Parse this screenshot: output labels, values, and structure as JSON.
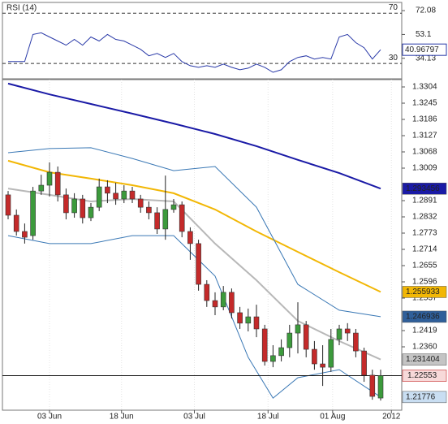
{
  "chart_data": [
    {
      "type": "line",
      "title": "RSI (14)",
      "color": "#2a3aa8",
      "values": [
        31.5,
        31.5,
        31.5,
        53.1,
        54.4,
        51.1,
        47.9,
        44.6,
        49.2,
        44.6,
        51.1,
        47.9,
        53.1,
        49.2,
        47.9,
        44.6,
        41.3,
        36.1,
        38.0,
        34.8,
        38.0,
        31.5,
        28.2,
        26.9,
        28.2,
        26.9,
        29.5,
        26.9,
        25.0,
        26.3,
        29.5,
        26.9,
        23.0,
        25.0,
        31.5,
        34.8,
        36.1,
        33.5,
        34.8,
        33.5,
        51.1,
        53.1,
        46.6,
        42.6,
        33.5,
        40.96797
      ],
      "ylim": [
        17.8,
        78.6
      ],
      "yticks": [
        72.08,
        53.1,
        34.13
      ],
      "levels": [
        70,
        30
      ]
    },
    {
      "type": "candlestick",
      "up_color": "#3c9a3c",
      "down_color": "#c42a2a",
      "open": [
        1.2912,
        1.2838,
        1.2779,
        1.2764,
        1.2926,
        1.2947,
        1.2994,
        1.2912,
        1.2847,
        1.2897,
        1.2829,
        1.2867,
        1.2941,
        1.2918,
        1.2897,
        1.2926,
        1.2897,
        1.2867,
        1.2847,
        1.2788,
        1.2859,
        1.2876,
        1.2779,
        1.2735,
        1.2587,
        1.2528,
        1.2505,
        1.2558,
        1.2484,
        1.2446,
        1.2469,
        1.2425,
        1.2307,
        1.2328,
        1.2357,
        1.241,
        1.244,
        1.2351,
        1.2298,
        1.2286,
        1.2387,
        1.2425,
        1.241,
        1.2345,
        1.2257,
        1.2174
      ],
      "high": [
        1.2926,
        1.2859,
        1.2808,
        1.2941,
        1.2985,
        1.303,
        1.3015,
        1.2935,
        1.2918,
        1.2912,
        1.2882,
        1.2971,
        1.2965,
        1.2956,
        1.2947,
        1.2941,
        1.2912,
        1.2888,
        1.2867,
        1.2982,
        1.2897,
        1.2888,
        1.2794,
        1.2749,
        1.2602,
        1.2558,
        1.2581,
        1.2572,
        1.2505,
        1.2499,
        1.2513,
        1.244,
        1.2366,
        1.2387,
        1.244,
        1.2522,
        1.2454,
        1.2381,
        1.2366,
        1.2425,
        1.244,
        1.2446,
        1.2425,
        1.2357,
        1.2277,
        1.2277
      ],
      "low": [
        1.2823,
        1.2764,
        1.2735,
        1.2749,
        1.2912,
        1.2906,
        1.2888,
        1.2823,
        1.2829,
        1.2808,
        1.2817,
        1.2853,
        1.2882,
        1.2876,
        1.2882,
        1.2882,
        1.2847,
        1.2823,
        1.277,
        1.2749,
        1.2847,
        1.2758,
        1.2676,
        1.2564,
        1.2505,
        1.2475,
        1.2493,
        1.2463,
        1.2425,
        1.2416,
        1.2395,
        1.2292,
        1.2286,
        1.2307,
        1.2322,
        1.2336,
        1.2322,
        1.2277,
        1.2218,
        1.2269,
        1.2366,
        1.2381,
        1.2322,
        1.2233,
        1.2168,
        1.2165
      ],
      "close": [
        1.2838,
        1.2779,
        1.2758,
        1.2926,
        1.2947,
        1.2994,
        1.2912,
        1.2847,
        1.2897,
        1.2829,
        1.2867,
        1.2941,
        1.2918,
        1.2897,
        1.2926,
        1.2897,
        1.2867,
        1.2847,
        1.2788,
        1.2859,
        1.2876,
        1.2779,
        1.2735,
        1.2587,
        1.2528,
        1.2505,
        1.2558,
        1.2484,
        1.2446,
        1.2469,
        1.2425,
        1.2307,
        1.2328,
        1.2357,
        1.241,
        1.244,
        1.2351,
        1.2298,
        1.2286,
        1.2387,
        1.2425,
        1.241,
        1.2345,
        1.2257,
        1.218,
        1.22553
      ],
      "last_label_color": "#f7d9d9",
      "last_label_border": "#c42a2a",
      "overlays": [
        {
          "color": "#1a1aa6",
          "width": 2,
          "label_color": "#1a1aa6",
          "label_text_color": "#ffffff",
          "x": [
            0,
            5,
            10,
            15,
            20,
            25,
            30,
            35,
            40,
            45
          ],
          "values": [
            1.3316,
            1.3277,
            1.3242,
            1.3207,
            1.3171,
            1.3133,
            1.3089,
            1.3039,
            1.2991,
            1.293456
          ]
        },
        {
          "color": "#f2b705",
          "width": 2,
          "label_color": "#f2b705",
          "label_text_color": "#000000",
          "x": [
            0,
            5,
            10,
            15,
            20,
            25,
            30,
            35,
            40,
            45
          ],
          "values": [
            1.3036,
            1.2994,
            1.2971,
            1.2947,
            1.2918,
            1.2859,
            1.2779,
            1.2705,
            1.2631,
            1.255933
          ]
        },
        {
          "color": "#b8b8b8",
          "width": 2,
          "label_color": "#c4c4c4",
          "label_text_color": "#000000",
          "x": [
            0,
            5,
            10,
            15,
            20,
            25,
            30,
            35,
            40,
            45
          ],
          "values": [
            1.2935,
            1.2912,
            1.2888,
            1.2897,
            1.2888,
            1.2735,
            1.2602,
            1.2454,
            1.2381,
            1.231404
          ]
        },
        {
          "color": "#3a78b5",
          "width": 1,
          "label_color": "#2f5f9a",
          "label_text_color": "#ffffff",
          "x": [
            0,
            5,
            10,
            15,
            20,
            25,
            30,
            35,
            40,
            45
          ],
          "values": [
            1.3065,
            1.308,
            1.3083,
            1.3044,
            1.3,
            1.3015,
            1.2867,
            1.2587,
            1.2493,
            1.246936
          ]
        },
        {
          "color": "#3a78b5",
          "width": 1,
          "label_color": "#c9def2",
          "label_text_color": "#000000",
          "x": [
            0,
            5,
            10,
            15,
            20,
            25,
            29,
            32,
            35,
            40,
            45
          ],
          "values": [
            1.2764,
            1.2735,
            1.2735,
            1.2764,
            1.2764,
            1.2617,
            1.2322,
            1.2174,
            1.2248,
            1.2277,
            1.21776
          ]
        }
      ],
      "ylim": [
        1.21299,
        1.33306
      ],
      "yticks": [
        1.3304,
        1.3245,
        1.3186,
        1.3127,
        1.3068,
        1.3009,
        1.2891,
        1.2832,
        1.2773,
        1.2714,
        1.2655,
        1.2596,
        1.2537,
        1.2419,
        {
          "value": 1.236,
          "label": "1.2360"
        }
      ],
      "xticks": [
        {
          "value": 5,
          "label": "03 Jun"
        },
        {
          "value": 13.7,
          "label": "18 Jun"
        },
        {
          "value": 22.5,
          "label": "03 Jul"
        },
        {
          "value": 31.4,
          "label": "18 Jul"
        },
        {
          "value": 39.2,
          "label": "01 Aug"
        },
        {
          "value": 46.3,
          "label": "2012"
        }
      ]
    }
  ]
}
